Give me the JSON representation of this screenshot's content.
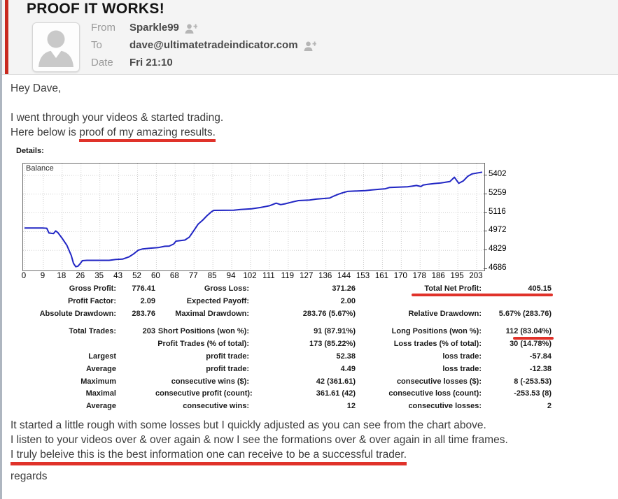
{
  "email": {
    "subject": "PROOF IT WORKS!",
    "meta": {
      "from_label": "From",
      "from_value": "Sparkle99",
      "to_label": "To",
      "to_value": "dave@ultimatetradeindicator.com",
      "date_label": "Date",
      "date_value": "Fri 21:10"
    },
    "body": {
      "greeting": "Hey Dave,",
      "intro_line1": "I went through your videos & started trading.",
      "intro_line2_prefix": "Here below is ",
      "intro_line2_underlined": "proof of my amazing results.",
      "outro_line1": "It started a little rough with some losses but I quickly adjusted as you can see from the chart above.",
      "outro_line2": "I listen to your videos over & over again & now I see the formations over & over again in all time frames.",
      "outro_line3_underlined": "I truly beleive this is the best information one can receive to be a successful trader.",
      "signoff": "regards"
    }
  },
  "report": {
    "details_label": "Details:",
    "stats_rows": [
      [
        "Gross Profit:",
        "776.41",
        "Gross Loss:",
        "371.26",
        "Total Net Profit:",
        "405.15"
      ],
      [
        "Profit Factor:",
        "2.09",
        "Expected Payoff:",
        "2.00",
        "",
        ""
      ],
      [
        "Absolute Drawdown:",
        "283.76",
        "Maximal Drawdown:",
        "283.76 (5.67%)",
        "Relative Drawdown:",
        "5.67% (283.76)"
      ],
      [
        "Total Trades:",
        "203",
        "Short Positions (won %):",
        "91 (87.91%)",
        "Long Positions (won %):",
        "112 (83.04%)"
      ],
      [
        "",
        "",
        "Profit Trades (% of total):",
        "173 (85.22%)",
        "Loss trades (% of total):",
        "30 (14.78%)"
      ],
      [
        "Largest",
        "",
        "profit trade:",
        "52.38",
        "loss trade:",
        "-57.84"
      ],
      [
        "Average",
        "",
        "profit trade:",
        "4.49",
        "loss trade:",
        "-12.38"
      ],
      [
        "Maximum",
        "",
        "consecutive wins ($):",
        "42 (361.61)",
        "consecutive losses ($):",
        "8 (-253.53)"
      ],
      [
        "Maximal",
        "",
        "consecutive profit (count):",
        "361.61 (42)",
        "consecutive loss (count):",
        "-253.53 (8)"
      ],
      [
        "Average",
        "",
        "consecutive wins:",
        "12",
        "consecutive losses:",
        "2"
      ]
    ],
    "gap_after_row": 2,
    "highlighted_values": [
      "Total Net Profit: 405.15",
      "112 (83.04%)"
    ]
  },
  "chart_data": {
    "type": "line",
    "title": "Balance",
    "legend": "Balance",
    "x_tick_labels": [
      "0",
      "9",
      "18",
      "26",
      "35",
      "43",
      "52",
      "60",
      "68",
      "77",
      "85",
      "94",
      "102",
      "111",
      "119",
      "127",
      "136",
      "144",
      "153",
      "161",
      "170",
      "178",
      "186",
      "195",
      "203"
    ],
    "y_tick_labels": [
      "5402",
      "5259",
      "5116",
      "4972",
      "4829",
      "4686"
    ],
    "y_axis_range": [
      4686,
      5493
    ],
    "x_axis_range": [
      0,
      206
    ],
    "grid": true,
    "line_color": "#2126c4",
    "grid_color": "#cfcfcf",
    "points": [
      [
        0,
        5000
      ],
      [
        8,
        5000
      ],
      [
        10,
        4998
      ],
      [
        11,
        4962
      ],
      [
        13,
        4957
      ],
      [
        14,
        4978
      ],
      [
        15,
        4965
      ],
      [
        17,
        4919
      ],
      [
        19,
        4868
      ],
      [
        21,
        4790
      ],
      [
        22,
        4730
      ],
      [
        23,
        4704
      ],
      [
        24,
        4708
      ],
      [
        25,
        4728
      ],
      [
        26,
        4750
      ],
      [
        28,
        4753
      ],
      [
        38,
        4753
      ],
      [
        41,
        4760
      ],
      [
        44,
        4762
      ],
      [
        47,
        4780
      ],
      [
        49,
        4802
      ],
      [
        51,
        4830
      ],
      [
        53,
        4840
      ],
      [
        56,
        4845
      ],
      [
        60,
        4850
      ],
      [
        63,
        4860
      ],
      [
        65,
        4862
      ],
      [
        67,
        4878
      ],
      [
        68,
        4900
      ],
      [
        72,
        4908
      ],
      [
        74,
        4930
      ],
      [
        76,
        4980
      ],
      [
        78,
        5030
      ],
      [
        80,
        5060
      ],
      [
        82,
        5095
      ],
      [
        84,
        5125
      ],
      [
        85,
        5135
      ],
      [
        94,
        5136
      ],
      [
        97,
        5142
      ],
      [
        102,
        5147
      ],
      [
        106,
        5157
      ],
      [
        110,
        5170
      ],
      [
        113,
        5190
      ],
      [
        115,
        5179
      ],
      [
        117,
        5185
      ],
      [
        120,
        5198
      ],
      [
        123,
        5210
      ],
      [
        128,
        5214
      ],
      [
        131,
        5221
      ],
      [
        134,
        5225
      ],
      [
        137,
        5229
      ],
      [
        139,
        5245
      ],
      [
        141,
        5259
      ],
      [
        143,
        5270
      ],
      [
        145,
        5280
      ],
      [
        153,
        5286
      ],
      [
        156,
        5291
      ],
      [
        159,
        5296
      ],
      [
        162,
        5300
      ],
      [
        164,
        5310
      ],
      [
        172,
        5315
      ],
      [
        174,
        5320
      ],
      [
        176,
        5325
      ],
      [
        178,
        5317
      ],
      [
        179,
        5329
      ],
      [
        181,
        5334
      ],
      [
        184,
        5340
      ],
      [
        187,
        5345
      ],
      [
        189,
        5350
      ],
      [
        191,
        5355
      ],
      [
        193,
        5388
      ],
      [
        195,
        5342
      ],
      [
        197,
        5360
      ],
      [
        199,
        5395
      ],
      [
        201,
        5414
      ],
      [
        203,
        5420
      ],
      [
        206,
        5427
      ]
    ]
  },
  "colors": {
    "accent_red": "#c8291f",
    "underline_red": "#e0322a",
    "header_bg": "#f4f4f4",
    "body_text": "#3c3c3c",
    "table_text": "#1b1b1b",
    "chart_line": "#2126c4"
  }
}
